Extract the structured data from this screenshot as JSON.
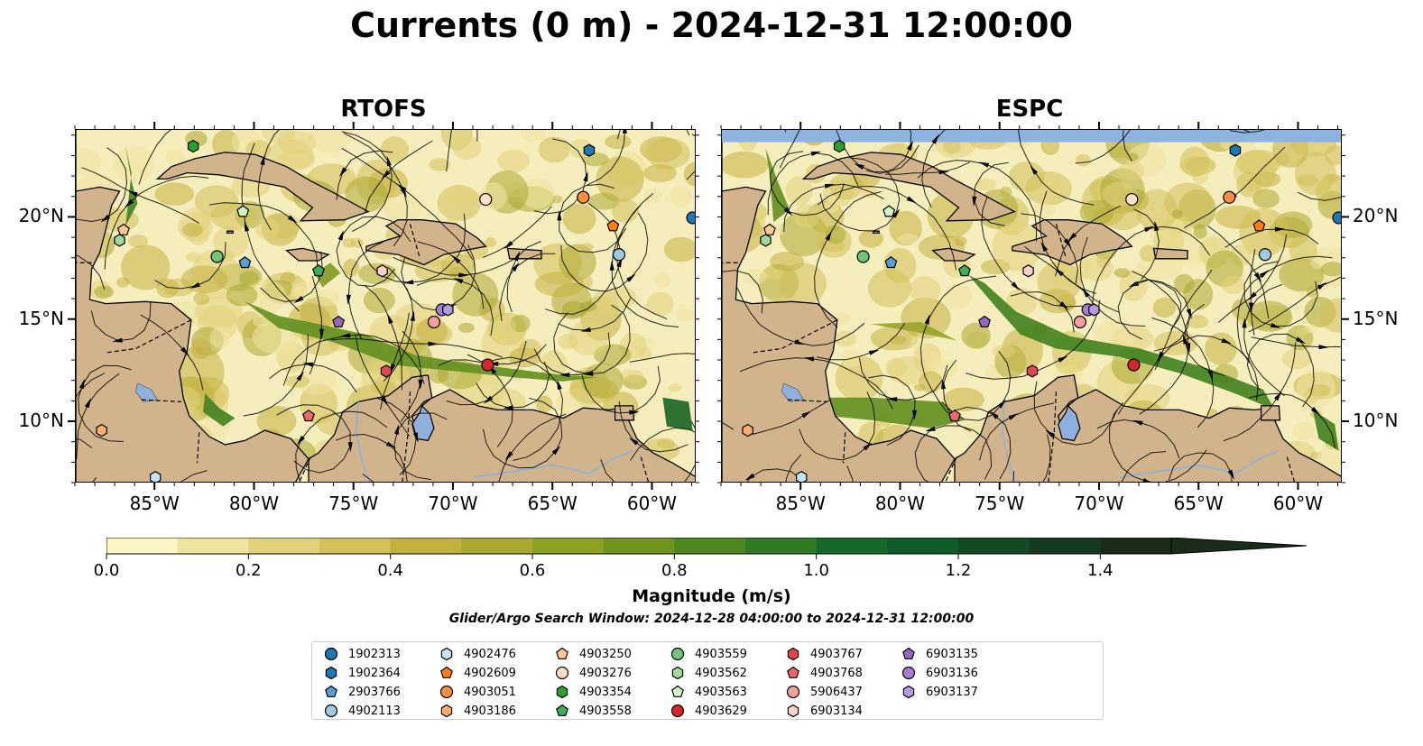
{
  "title": "Currents (0 m) - 2024-12-31 12:00:00",
  "panels": [
    {
      "id": "rtofs",
      "title": "RTOFS"
    },
    {
      "id": "espc",
      "title": "ESPC"
    }
  ],
  "map_extent": {
    "lon_min": -89,
    "lon_max": -57.8,
    "lat_min": 7,
    "lat_max": 24.3
  },
  "lon_ticks": [
    "85°W",
    "80°W",
    "75°W",
    "70°W",
    "65°W",
    "60°W"
  ],
  "lon_tick_values": [
    -85,
    -80,
    -75,
    -70,
    -65,
    -60
  ],
  "lat_ticks": [
    "20°N",
    "15°N",
    "10°N"
  ],
  "lat_tick_values": [
    20,
    15,
    10
  ],
  "colors": {
    "land": "#d2b48c",
    "ocean_base": "#f5eebc",
    "rivers": "#8fb0dc",
    "espc_nodata": "#8fb3e0"
  },
  "colorbar": {
    "label": "Magnitude (m/s)",
    "ticks": [
      "0.0",
      "0.2",
      "0.4",
      "0.6",
      "0.8",
      "1.0",
      "1.2",
      "1.4"
    ],
    "tick_values": [
      0.0,
      0.2,
      0.4,
      0.6,
      0.8,
      1.0,
      1.2,
      1.4
    ],
    "vmin": 0.0,
    "vmax": 1.5,
    "extend": "max",
    "colors": [
      "#fcf6c4",
      "#efe3a0",
      "#e0d17a",
      "#d2c05a",
      "#c2b142",
      "#a9a832",
      "#8fa125",
      "#6f951f",
      "#4f871f",
      "#2f7a23",
      "#17692b",
      "#115b2a",
      "#134a25",
      "#163a20",
      "#1b2c1a"
    ]
  },
  "subtitle": "Glider/Argo Search Window: 2024-12-28 04:00:00 to 2024-12-31 12:00:00",
  "legend": [
    {
      "label": "1902313",
      "marker": "circle",
      "color": "#1f77b4"
    },
    {
      "label": "1902364",
      "marker": "hexagon",
      "color": "#1f77b4"
    },
    {
      "label": "2903766",
      "marker": "pentagon",
      "color": "#5a9fd4"
    },
    {
      "label": "4902113",
      "marker": "circle",
      "color": "#9ecae1"
    },
    {
      "label": "4902476",
      "marker": "hexagon",
      "color": "#c6e4f5"
    },
    {
      "label": "4902609",
      "marker": "pentagon",
      "color": "#ff7f0e"
    },
    {
      "label": "4903051",
      "marker": "circle",
      "color": "#fd8d3c"
    },
    {
      "label": "4903186",
      "marker": "hexagon",
      "color": "#fdae6b"
    },
    {
      "label": "4903250",
      "marker": "pentagon",
      "color": "#fdc896"
    },
    {
      "label": "4903276",
      "marker": "circle",
      "color": "#fde0c5"
    },
    {
      "label": "4903354",
      "marker": "hexagon",
      "color": "#2ca02c"
    },
    {
      "label": "4903558",
      "marker": "pentagon",
      "color": "#41ab5d"
    },
    {
      "label": "4903559",
      "marker": "circle",
      "color": "#74c476"
    },
    {
      "label": "4903562",
      "marker": "hexagon",
      "color": "#a1d99b"
    },
    {
      "label": "4903563",
      "marker": "pentagon",
      "color": "#d5f5c8"
    },
    {
      "label": "4903629",
      "marker": "circle",
      "color": "#d62728"
    },
    {
      "label": "4903767",
      "marker": "hexagon",
      "color": "#e0474c"
    },
    {
      "label": "4903768",
      "marker": "pentagon",
      "color": "#e8686c"
    },
    {
      "label": "5906437",
      "marker": "circle",
      "color": "#f1a09e"
    },
    {
      "label": "6903134",
      "marker": "hexagon",
      "color": "#fbd0c8"
    },
    {
      "label": "6903135",
      "marker": "pentagon",
      "color": "#9467bd"
    },
    {
      "label": "6903136",
      "marker": "circle",
      "color": "#a57fd0"
    },
    {
      "label": "6903137",
      "marker": "hexagon",
      "color": "#b69ae0"
    }
  ],
  "floats": [
    {
      "id": "1902313",
      "lon": -58.0,
      "lat": 20.0
    },
    {
      "id": "1902364",
      "lon": -63.2,
      "lat": 23.3
    },
    {
      "id": "2903766",
      "lon": -80.5,
      "lat": 17.8
    },
    {
      "id": "4902113",
      "lon": -61.7,
      "lat": 18.2
    },
    {
      "id": "4902476",
      "lon": -85.0,
      "lat": 7.3
    },
    {
      "id": "4902609",
      "lon": -62.0,
      "lat": 19.6
    },
    {
      "id": "4903051",
      "lon": -63.5,
      "lat": 21.0
    },
    {
      "id": "4903186",
      "lon": -87.7,
      "lat": 9.6
    },
    {
      "id": "4903250",
      "lon": -86.6,
      "lat": 19.4
    },
    {
      "id": "4903276",
      "lon": -68.4,
      "lat": 20.9
    },
    {
      "id": "4903354",
      "lon": -83.1,
      "lat": 23.5
    },
    {
      "id": "4903558",
      "lon": -76.8,
      "lat": 17.4
    },
    {
      "id": "4903559",
      "lon": -81.9,
      "lat": 18.1
    },
    {
      "id": "4903562",
      "lon": -86.8,
      "lat": 18.9
    },
    {
      "id": "4903563",
      "lon": -80.6,
      "lat": 20.3
    },
    {
      "id": "4903629",
      "lon": -68.3,
      "lat": 12.8
    },
    {
      "id": "4903767",
      "lon": -73.4,
      "lat": 12.5
    },
    {
      "id": "4903768",
      "lon": -77.3,
      "lat": 10.3
    },
    {
      "id": "5906437",
      "lon": -71.0,
      "lat": 14.9
    },
    {
      "id": "6903134",
      "lon": -73.6,
      "lat": 17.4
    },
    {
      "id": "6903135",
      "lon": -75.8,
      "lat": 14.9
    },
    {
      "id": "6903136",
      "lon": -70.6,
      "lat": 15.5
    },
    {
      "id": "6903137",
      "lon": -70.3,
      "lat": 15.5
    }
  ]
}
